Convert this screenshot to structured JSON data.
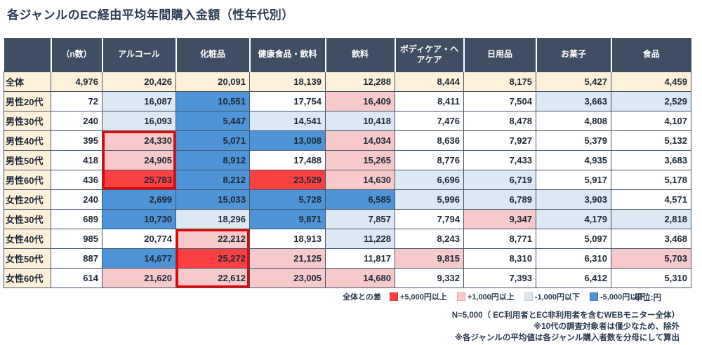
{
  "title": "各ジャンルのEC経由平均年間購入金額（性年代別）",
  "chart_data": {
    "type": "heatmap-table",
    "title": "各ジャンルのEC経由平均年間購入金額（性年代別）",
    "unit_label": "単位:円",
    "columns": [
      "",
      "（n数）",
      "アルコール",
      "化粧品",
      "健康食品・飲料",
      "飲料",
      "ボディケア・ヘアケア",
      "日用品",
      "お菓子",
      "食品"
    ],
    "color_meaning": {
      "t": "total-row",
      "w": "within ±1,000 of total",
      "lb": "-1,000円以下",
      "b": "-5,000円以下",
      "p": "+1,000円以上",
      "r": "+5,000円以上"
    },
    "rows": [
      {
        "label": "全体",
        "n": 4976,
        "values": [
          20426,
          20091,
          18139,
          12288,
          8444,
          8175,
          5427,
          4459
        ],
        "cell_colors": [
          "t",
          "t",
          "t",
          "t",
          "t",
          "t",
          "t",
          "t"
        ]
      },
      {
        "label": "男性20代",
        "n": 72,
        "values": [
          16087,
          10551,
          17754,
          16409,
          8411,
          7504,
          3663,
          2529
        ],
        "cell_colors": [
          "lb",
          "b",
          "w",
          "p",
          "w",
          "w",
          "lb",
          "lb"
        ]
      },
      {
        "label": "男性30代",
        "n": 240,
        "values": [
          16093,
          5447,
          14541,
          10418,
          7476,
          8478,
          4808,
          4107
        ],
        "cell_colors": [
          "lb",
          "b",
          "lb",
          "lb",
          "w",
          "w",
          "w",
          "w"
        ]
      },
      {
        "label": "男性40代",
        "n": 395,
        "values": [
          24330,
          5071,
          13008,
          14034,
          8636,
          7927,
          5379,
          5132
        ],
        "cell_colors": [
          "p",
          "b",
          "b",
          "p",
          "w",
          "w",
          "w",
          "w"
        ],
        "ring": {
          "col": 0,
          "pos": "top"
        }
      },
      {
        "label": "男性50代",
        "n": 418,
        "values": [
          24905,
          8912,
          17488,
          15265,
          8776,
          7433,
          4935,
          3683
        ],
        "cell_colors": [
          "p",
          "b",
          "w",
          "p",
          "w",
          "w",
          "w",
          "w"
        ],
        "ring": {
          "col": 0,
          "pos": "mid"
        }
      },
      {
        "label": "男性60代",
        "n": 436,
        "values": [
          25783,
          8212,
          23529,
          14630,
          6696,
          6719,
          5917,
          5178
        ],
        "cell_colors": [
          "r",
          "b",
          "r",
          "p",
          "lb",
          "lb",
          "w",
          "w"
        ],
        "ring": {
          "col": 0,
          "pos": "bot"
        }
      },
      {
        "label": "女性20代",
        "n": 240,
        "values": [
          2699,
          15033,
          5728,
          6585,
          5996,
          6789,
          3903,
          4571
        ],
        "cell_colors": [
          "b",
          "b",
          "b",
          "b",
          "lb",
          "lb",
          "lb",
          "w"
        ]
      },
      {
        "label": "女性30代",
        "n": 689,
        "values": [
          10730,
          18296,
          9871,
          7857,
          7794,
          9347,
          4179,
          2818
        ],
        "cell_colors": [
          "b",
          "lb",
          "b",
          "lb",
          "w",
          "p",
          "lb",
          "lb"
        ]
      },
      {
        "label": "女性40代",
        "n": 985,
        "values": [
          20774,
          22212,
          18913,
          11228,
          8243,
          8771,
          5097,
          3468
        ],
        "cell_colors": [
          "w",
          "p",
          "w",
          "lb",
          "w",
          "w",
          "w",
          "w"
        ],
        "ring": {
          "col": 1,
          "pos": "top"
        }
      },
      {
        "label": "女性50代",
        "n": 887,
        "values": [
          14677,
          25272,
          21125,
          11817,
          9815,
          8310,
          6310,
          5703
        ],
        "cell_colors": [
          "b",
          "r",
          "p",
          "w",
          "p",
          "w",
          "w",
          "p"
        ],
        "ring": {
          "col": 1,
          "pos": "mid"
        }
      },
      {
        "label": "女性60代",
        "n": 614,
        "values": [
          21620,
          22612,
          23005,
          14680,
          9332,
          7393,
          6412,
          5310
        ],
        "cell_colors": [
          "p",
          "p",
          "p",
          "p",
          "w",
          "w",
          "w",
          "w"
        ],
        "ring": {
          "col": 1,
          "pos": "bot"
        }
      }
    ],
    "legend": {
      "label": "全体との差",
      "items": [
        {
          "color": "#fb4042",
          "label": "+5,000円以上"
        },
        {
          "color": "#f8c9cb",
          "label": "+1,000円以上"
        },
        {
          "color": "#dce8f3",
          "label": "-1,000円以下"
        },
        {
          "color": "#4e94d6",
          "label": "-5,000円以下"
        }
      ],
      "unit": "単位:円"
    },
    "footnotes": [
      "N=5,000（ EC利用者とEC非利用者を含むWEBモニター全体）",
      "※10代の調査対象者は僅少なため、除外",
      "※各ジャンルの平均値は各ジャンル購入者数を分母にして算出"
    ]
  },
  "colors": {
    "header_bg": "#3f4e63",
    "total_row_bg": "#fdf1da",
    "red": "#fb4042",
    "pink": "#f8c9cb",
    "light_blue": "#dce8f3",
    "blue": "#4e94d6",
    "ring": "#ee0000",
    "grid": "#44546a"
  }
}
